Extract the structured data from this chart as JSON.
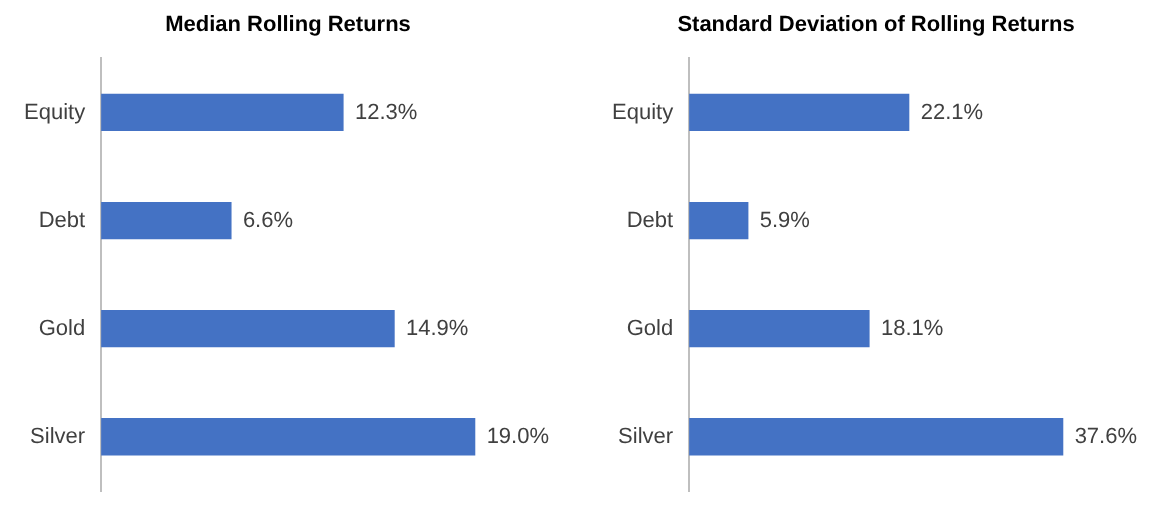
{
  "chart_data": [
    {
      "type": "bar",
      "title": "Median Rolling Returns",
      "orientation": "horizontal",
      "categories": [
        "Equity",
        "Debt",
        "Gold",
        "Silver"
      ],
      "values": [
        12.3,
        6.6,
        14.9,
        19.0
      ],
      "value_labels": [
        "12.3%",
        "6.6%",
        "14.9%",
        "19.0%"
      ],
      "color": "#4472c4",
      "legend": false
    },
    {
      "type": "bar",
      "title": "Standard Deviation of Rolling Returns",
      "orientation": "horizontal",
      "categories": [
        "Equity",
        "Debt",
        "Gold",
        "Silver"
      ],
      "values": [
        22.1,
        5.9,
        18.1,
        37.6
      ],
      "value_labels": [
        "22.1%",
        "5.9%",
        "18.1%",
        "37.6%"
      ],
      "color": "#4472c4",
      "legend": false
    }
  ]
}
